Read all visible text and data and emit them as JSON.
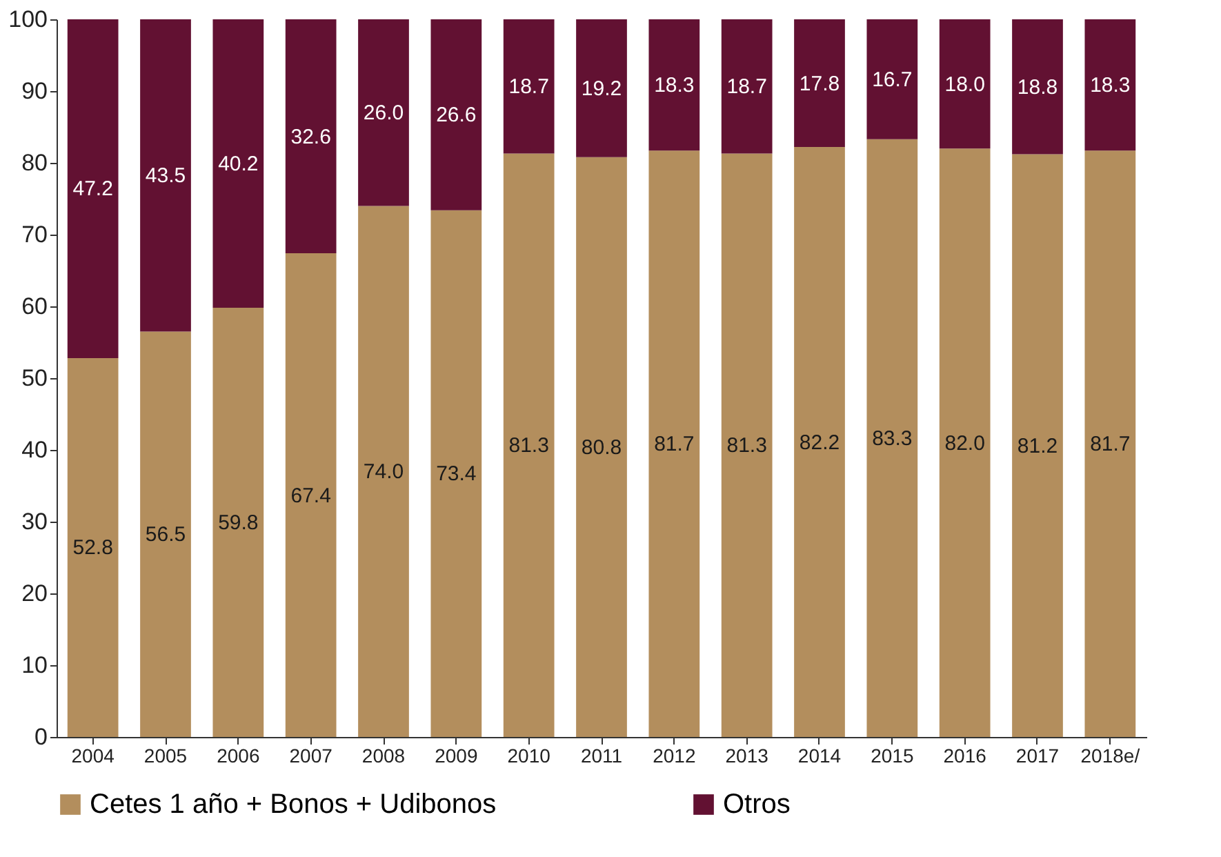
{
  "chart_data": {
    "type": "bar",
    "stacked": true,
    "categories": [
      "2004",
      "2005",
      "2006",
      "2007",
      "2008",
      "2009",
      "2010",
      "2011",
      "2012",
      "2013",
      "2014",
      "2015",
      "2016",
      "2017",
      "2018e/"
    ],
    "series": [
      {
        "name": "Cetes 1 año + Bonos + Udibonos",
        "color": "#b38e5d",
        "values": [
          52.8,
          56.5,
          59.8,
          67.4,
          74.0,
          73.4,
          81.3,
          80.8,
          81.7,
          81.3,
          82.2,
          83.3,
          82.0,
          81.2,
          81.7
        ],
        "value_labels": [
          "52.8",
          "56.5",
          "59.8",
          "67.4",
          "74.0",
          "73.4",
          "81.3",
          "80.8",
          "81.7",
          "81.3",
          "82.2",
          "83.3",
          "82.0",
          "81.2",
          "81.7"
        ]
      },
      {
        "name": "Otros",
        "color": "#621132",
        "values": [
          47.2,
          43.5,
          40.2,
          32.6,
          26.0,
          26.6,
          18.7,
          19.2,
          18.3,
          18.7,
          17.8,
          16.7,
          18.0,
          18.8,
          18.3
        ],
        "value_labels": [
          "47.2",
          "43.5",
          "40.2",
          "32.6",
          "26.0",
          "26.6",
          "18.7",
          "19.2",
          "18.3",
          "18.7",
          "17.8",
          "16.7",
          "18.0",
          "18.8",
          "18.3"
        ]
      }
    ],
    "ylim": [
      0,
      100
    ],
    "yticks": [
      0,
      10,
      20,
      30,
      40,
      50,
      60,
      70,
      80,
      90,
      100
    ],
    "grid": false,
    "legend": "bottom"
  }
}
